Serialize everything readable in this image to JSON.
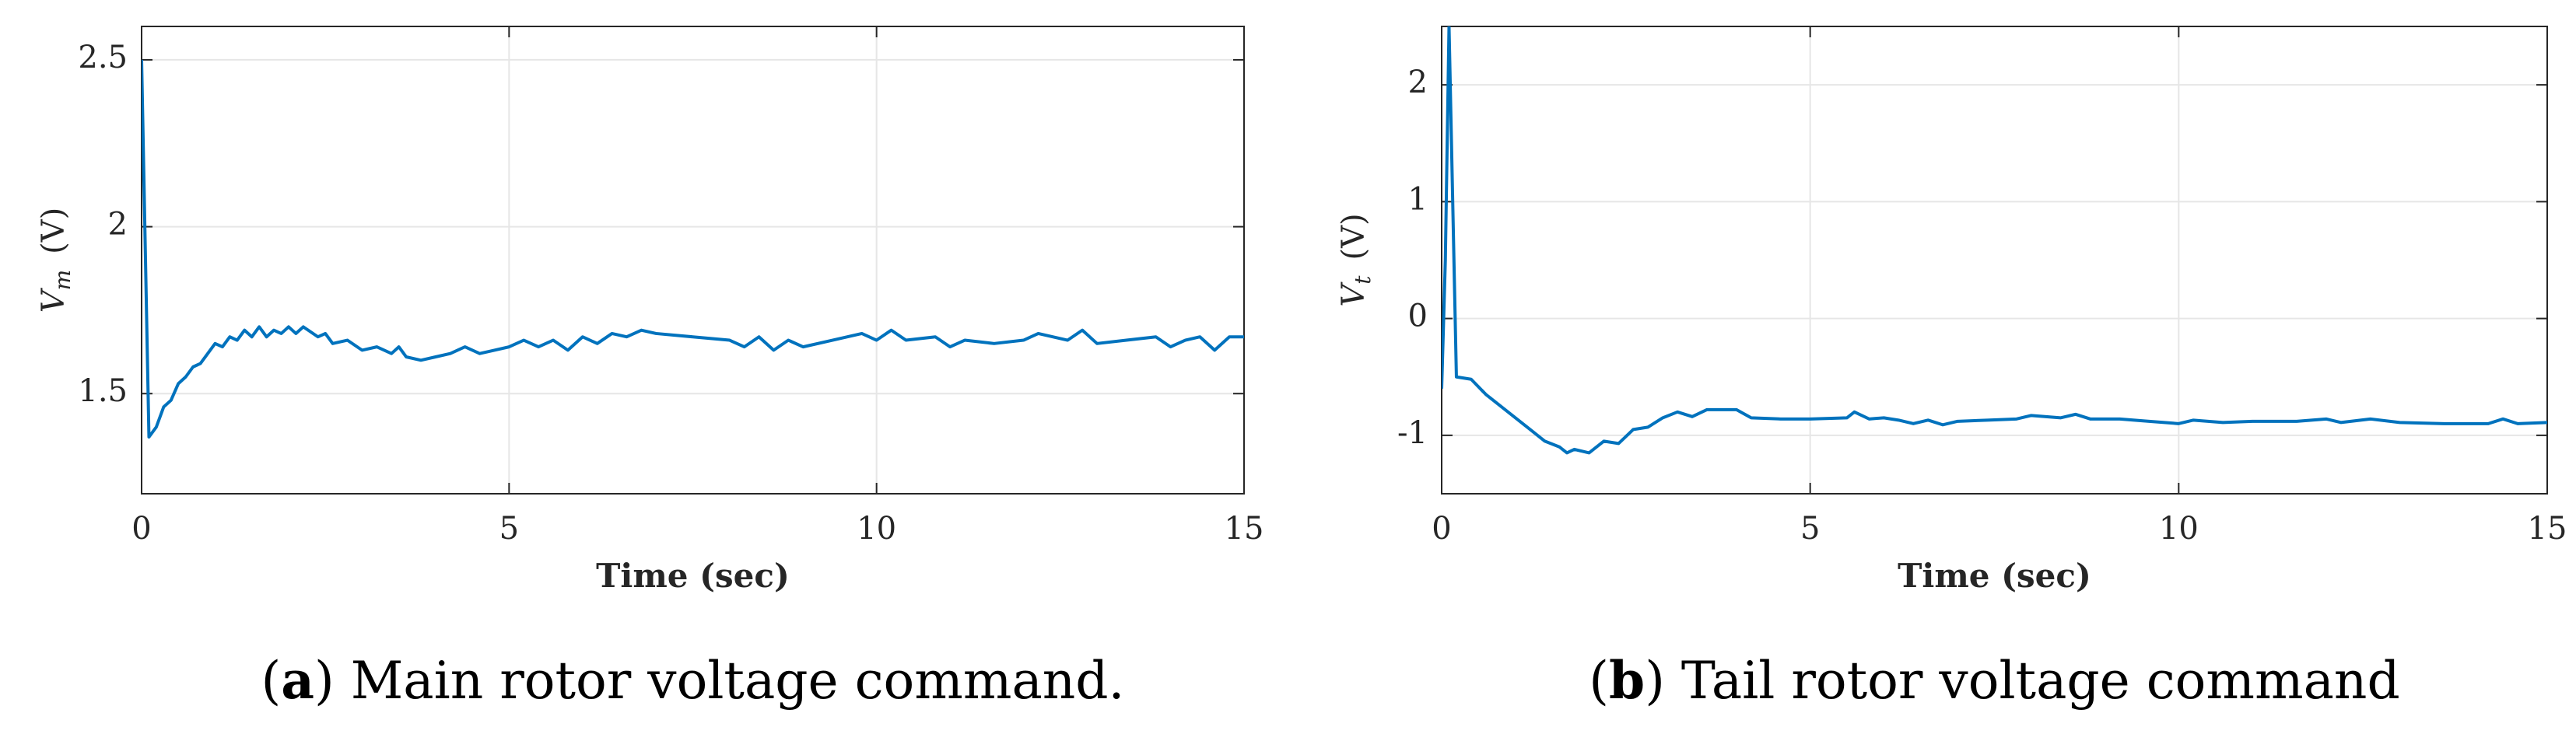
{
  "chart_data": [
    {
      "type": "line",
      "ylabel_symbol": "V",
      "ylabel_subscript": "m",
      "ylabel_unit": "(V)",
      "xlabel": "Time (sec)",
      "caption": [
        "(",
        "a",
        ") Main rotor voltage command."
      ],
      "xlim": [
        0,
        15
      ],
      "xticks": [
        0,
        5,
        10,
        15
      ],
      "ylim": [
        1.2,
        2.6
      ],
      "yticks": [
        1.5,
        2,
        2.5
      ],
      "grid": true,
      "x": [
        0,
        0.1,
        0.2,
        0.3,
        0.4,
        0.5,
        0.6,
        0.7,
        0.8,
        0.9,
        1.0,
        1.1,
        1.2,
        1.3,
        1.4,
        1.5,
        1.6,
        1.7,
        1.8,
        1.9,
        2.0,
        2.1,
        2.2,
        2.4,
        2.5,
        2.6,
        2.8,
        3.0,
        3.2,
        3.4,
        3.5,
        3.6,
        3.8,
        4.0,
        4.2,
        4.4,
        4.6,
        4.8,
        5.0,
        5.2,
        5.4,
        5.6,
        5.8,
        6.0,
        6.2,
        6.4,
        6.6,
        6.8,
        7.0,
        7.5,
        8.0,
        8.2,
        8.4,
        8.6,
        8.8,
        9.0,
        9.4,
        9.8,
        10.0,
        10.2,
        10.4,
        10.8,
        11.0,
        11.2,
        11.6,
        12.0,
        12.2,
        12.6,
        12.8,
        13.0,
        13.4,
        13.8,
        14.0,
        14.2,
        14.4,
        14.6,
        14.8,
        15.0
      ],
      "series": [
        {
          "color": "#0072bd",
          "values": [
            2.5,
            1.37,
            1.4,
            1.46,
            1.48,
            1.53,
            1.55,
            1.58,
            1.59,
            1.62,
            1.65,
            1.64,
            1.67,
            1.66,
            1.69,
            1.67,
            1.7,
            1.67,
            1.69,
            1.68,
            1.7,
            1.68,
            1.7,
            1.67,
            1.68,
            1.65,
            1.66,
            1.63,
            1.64,
            1.62,
            1.64,
            1.61,
            1.6,
            1.61,
            1.62,
            1.64,
            1.62,
            1.63,
            1.64,
            1.66,
            1.64,
            1.66,
            1.63,
            1.67,
            1.65,
            1.68,
            1.67,
            1.69,
            1.68,
            1.67,
            1.66,
            1.64,
            1.67,
            1.63,
            1.66,
            1.64,
            1.66,
            1.68,
            1.66,
            1.69,
            1.66,
            1.67,
            1.64,
            1.66,
            1.65,
            1.66,
            1.68,
            1.66,
            1.69,
            1.65,
            1.66,
            1.67,
            1.64,
            1.66,
            1.67,
            1.63,
            1.67,
            1.67
          ]
        }
      ]
    },
    {
      "type": "line",
      "ylabel_symbol": "V",
      "ylabel_subscript": "t",
      "ylabel_unit": "(V)",
      "xlabel": "Time (sec)",
      "caption": [
        "(",
        "b",
        ") Tail rotor voltage command"
      ],
      "xlim": [
        0,
        15
      ],
      "xticks": [
        0,
        5,
        10,
        15
      ],
      "ylim": [
        -1.5,
        2.5
      ],
      "yticks": [
        -1,
        0,
        1,
        2
      ],
      "grid": true,
      "x": [
        0,
        0.05,
        0.1,
        0.15,
        0.2,
        0.4,
        0.6,
        0.8,
        1.0,
        1.2,
        1.4,
        1.6,
        1.7,
        1.8,
        2.0,
        2.2,
        2.4,
        2.6,
        2.8,
        3.0,
        3.2,
        3.4,
        3.6,
        4.0,
        4.2,
        4.6,
        5.0,
        5.5,
        5.6,
        5.8,
        6.0,
        6.2,
        6.4,
        6.6,
        6.8,
        7.0,
        7.4,
        7.8,
        8.0,
        8.4,
        8.6,
        8.8,
        9.2,
        9.6,
        10.0,
        10.2,
        10.6,
        11.0,
        11.6,
        12.0,
        12.2,
        12.6,
        13.0,
        13.6,
        14.2,
        14.4,
        14.6,
        15.0
      ],
      "series": [
        {
          "color": "#0072bd",
          "values": [
            -0.6,
            0.5,
            2.5,
            1.0,
            -0.5,
            -0.52,
            -0.65,
            -0.75,
            -0.85,
            -0.95,
            -1.05,
            -1.1,
            -1.15,
            -1.12,
            -1.15,
            -1.05,
            -1.07,
            -0.95,
            -0.93,
            -0.85,
            -0.8,
            -0.84,
            -0.78,
            -0.78,
            -0.85,
            -0.86,
            -0.86,
            -0.85,
            -0.8,
            -0.86,
            -0.85,
            -0.87,
            -0.9,
            -0.87,
            -0.91,
            -0.88,
            -0.87,
            -0.86,
            -0.83,
            -0.85,
            -0.82,
            -0.86,
            -0.86,
            -0.88,
            -0.9,
            -0.87,
            -0.89,
            -0.88,
            -0.88,
            -0.86,
            -0.89,
            -0.86,
            -0.89,
            -0.9,
            -0.9,
            -0.86,
            -0.9,
            -0.89
          ]
        }
      ]
    }
  ]
}
